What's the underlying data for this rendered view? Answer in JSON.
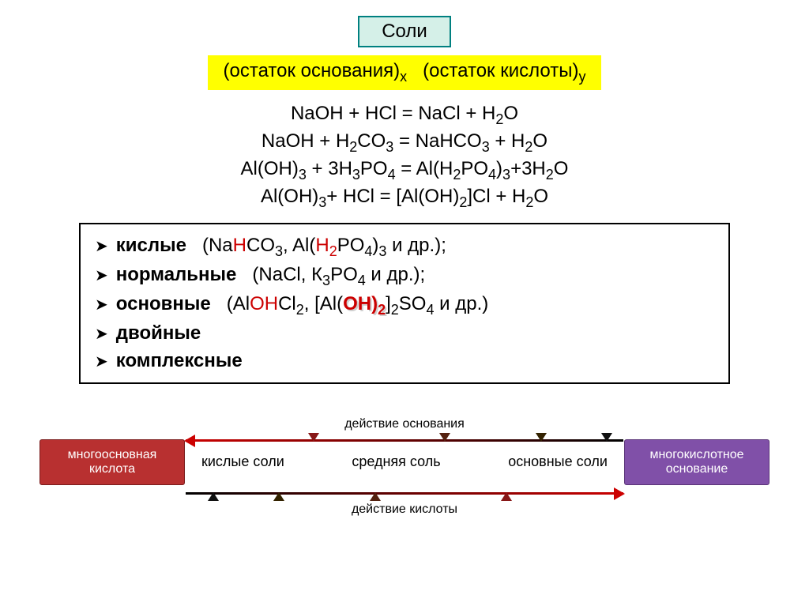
{
  "title": "Соли",
  "formula_bar_html": "(остаток основания)<sub>x</sub>&nbsp;&nbsp;&nbsp;(остаток кислоты)<sub>y</sub>",
  "equations": [
    "NaOH + HCl = NaCl + H<sub>2</sub>O",
    "NaOH + H<sub>2</sub>CO<sub>3</sub> = NaHCO<sub>3</sub> + H<sub>2</sub>O",
    "Al(OH)<sub>3</sub> + 3H<sub>3</sub>PO<sub>4</sub> = Al(H<sub>2</sub>PO<sub>4</sub>)<sub>3</sub>+3H<sub>2</sub>O",
    "Al(OH)<sub>3</sub>+ HCl = [Al(OH)<sub>2</sub>]Cl + H<sub>2</sub>O"
  ],
  "categories": [
    {
      "name": "кислые",
      "examples_html": "(Na<span class='red'>H</span>CO<sub>3</sub>, Al(<span class='red'>H<sub>2</sub></span>PO<sub>4</sub>)<sub>3</sub> и др.);"
    },
    {
      "name": "нормальные",
      "examples_html": "(NaCl, К<sub>3</sub>PO<sub>4</sub> и др.);"
    },
    {
      "name": "основные",
      "examples_html": "(Al<span class='red'>OH</span>Cl<sub>2</sub>, [Al(<span class='red-bold-shadow'>OH)<sub>2</sub></span>]<sub>2</sub>SO<sub>4</sub> и др.)"
    },
    {
      "name": "двойные",
      "examples_html": ""
    },
    {
      "name": "комплексные",
      "examples_html": ""
    }
  ],
  "diagram": {
    "left_box": "многоосновная кислота",
    "right_box": "многокислотное основание",
    "top_action": "действие основания",
    "bottom_action": "действие кислоты",
    "labels": [
      "кислые соли",
      "средняя соль",
      "основные соли"
    ],
    "top_markers": [
      {
        "pos": 28,
        "color": "#881818"
      },
      {
        "pos": 58,
        "color": "#552210"
      },
      {
        "pos": 80,
        "color": "#332200"
      },
      {
        "pos": 95,
        "color": "#111111"
      }
    ],
    "bot_markers": [
      {
        "pos": 5,
        "color": "#111111"
      },
      {
        "pos": 20,
        "color": "#332200"
      },
      {
        "pos": 42,
        "color": "#552210"
      },
      {
        "pos": 72,
        "color": "#881818"
      }
    ],
    "top_end_color": "#cc0000",
    "bot_end_color": "#cc0000",
    "colors": {
      "left_box_bg": "#b83030",
      "right_box_bg": "#8050a8",
      "title_bg": "#d5f0e8",
      "title_border": "#008080",
      "formula_bg": "#ffff00",
      "red": "#cc0000"
    }
  }
}
